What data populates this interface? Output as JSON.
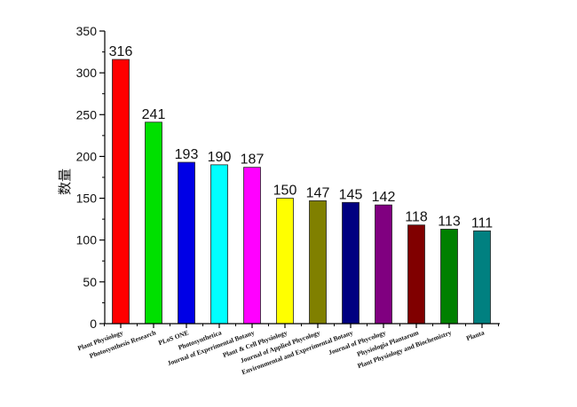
{
  "chart_data": {
    "type": "bar",
    "title": "",
    "xlabel": "",
    "ylabel": "数量",
    "ylim": [
      0,
      350
    ],
    "yticks": [
      0,
      50,
      100,
      150,
      200,
      250,
      300,
      350
    ],
    "grid": false,
    "legend": null,
    "categories": [
      "Plant Physiology",
      "Photosynthesis Research",
      "PLoS ONE",
      "Photosynthetica",
      "Journal of Experimental Botany",
      "Plant & Cell Physiology",
      "Journal of Applied Phycology",
      "Environmental and Experimental Botany",
      "Journal of Phycology",
      "Physiologia Plantarum",
      "Plant Physiology and Biochemistry",
      "Planta"
    ],
    "values": [
      316,
      241,
      193,
      190,
      187,
      150,
      147,
      145,
      142,
      118,
      113,
      111
    ],
    "colors": [
      "#ff0000",
      "#00e000",
      "#0000e6",
      "#00ffff",
      "#ff00ff",
      "#ffff00",
      "#808000",
      "#000080",
      "#800080",
      "#800000",
      "#008000",
      "#008080"
    ],
    "data_labels": [
      "316",
      "241",
      "193",
      "190",
      "187",
      "150",
      "147",
      "145",
      "142",
      "118",
      "113",
      "111"
    ]
  }
}
